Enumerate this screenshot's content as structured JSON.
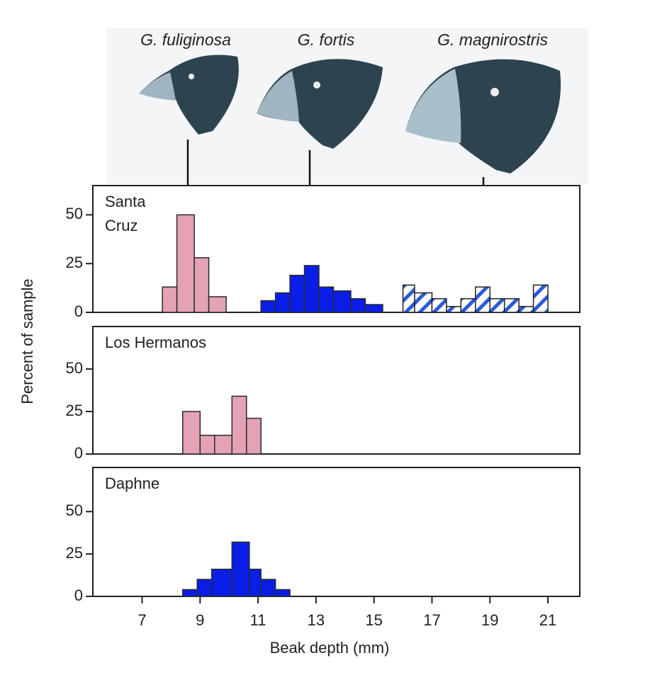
{
  "species_labels": [
    "G. fuliginosa",
    "G. fortis",
    "G. magnirostris"
  ],
  "ylabel": "Percent of sample",
  "xlabel": "Beak depth (mm)",
  "chart_data": [
    {
      "type": "histogram",
      "title": [
        "Santa",
        "Cruz"
      ],
      "xlim": [
        5.3,
        22.1
      ],
      "ylim": [
        0,
        65
      ],
      "yticks": [
        0,
        25,
        50
      ],
      "series": [
        {
          "color": "#e3a3b4",
          "pattern": "solid",
          "bins": [
            7.7,
            8.2,
            8.8,
            9.3,
            9.9
          ],
          "counts": [
            13,
            50,
            28,
            8
          ]
        },
        {
          "color": "#0a1ee8",
          "pattern": "solid",
          "bins": [
            11.1,
            11.6,
            12.1,
            12.6,
            13.1,
            13.6,
            14.2,
            14.7,
            15.3
          ],
          "counts": [
            6,
            10,
            19,
            24,
            13,
            11,
            7,
            4
          ]
        },
        {
          "color": "#2a5ad8",
          "pattern": "hatch",
          "bins": [
            16.0,
            16.4,
            17.0,
            17.5,
            18.0,
            18.5,
            19.0,
            19.5,
            20.0,
            20.5,
            21.0
          ],
          "counts": [
            14,
            10,
            7,
            3,
            7,
            13,
            7,
            7,
            3,
            14
          ]
        }
      ]
    },
    {
      "type": "histogram",
      "title": [
        "Los Hermanos"
      ],
      "xlim": [
        5.3,
        22.1
      ],
      "ylim": [
        0,
        75
      ],
      "yticks": [
        0,
        25,
        50
      ],
      "series": [
        {
          "color": "#e3a3b4",
          "pattern": "solid",
          "bins": [
            8.4,
            9.0,
            9.5,
            10.1,
            10.6,
            11.1
          ],
          "counts": [
            25,
            11,
            11,
            34,
            21
          ]
        }
      ]
    },
    {
      "type": "histogram",
      "title": [
        "Daphne"
      ],
      "xlim": [
        5.3,
        22.1
      ],
      "ylim": [
        0,
        76
      ],
      "yticks": [
        0,
        25,
        50
      ],
      "xticks": [
        7,
        9,
        11,
        13,
        15,
        17,
        19,
        21
      ],
      "series": [
        {
          "color": "#0a1ee8",
          "pattern": "solid",
          "bins": [
            8.4,
            8.9,
            9.4,
            10.1,
            10.7,
            11.1,
            11.6,
            12.1
          ],
          "counts": [
            4,
            10,
            16,
            32,
            16,
            10,
            4
          ]
        }
      ]
    }
  ]
}
